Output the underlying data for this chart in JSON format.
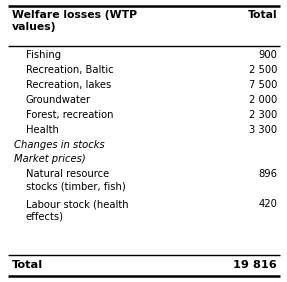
{
  "header_col1": "Welfare losses (WTP\nvalues)",
  "header_col2": "Total",
  "rows": [
    {
      "label": "Fishing",
      "value": "900",
      "indent": true,
      "italic": false
    },
    {
      "label": "Recreation, Baltic",
      "value": "2 500",
      "indent": true,
      "italic": false
    },
    {
      "label": "Recreation, lakes",
      "value": "7 500",
      "indent": true,
      "italic": false
    },
    {
      "label": "Groundwater",
      "value": "2 000",
      "indent": true,
      "italic": false
    },
    {
      "label": "Forest, recreation",
      "value": "2 300",
      "indent": true,
      "italic": false
    },
    {
      "label": "Health",
      "value": "3 300",
      "indent": true,
      "italic": false
    },
    {
      "label": "Changes in stocks",
      "value": "",
      "indent": false,
      "italic": true
    },
    {
      "label": "Market prices)",
      "value": "",
      "indent": false,
      "italic": true
    },
    {
      "label": "Natural resource\nstocks (timber, fish)",
      "value": "896",
      "indent": true,
      "italic": false
    },
    {
      "label": "Labour stock (health\neffects)",
      "value": "420",
      "indent": true,
      "italic": false
    }
  ],
  "footer_col1": "Total",
  "footer_col2": "19 816",
  "bg_color": "#ffffff",
  "line_color": "#000000",
  "text_color": "#000000",
  "figwidth": 2.87,
  "figheight": 2.82,
  "dpi": 100
}
